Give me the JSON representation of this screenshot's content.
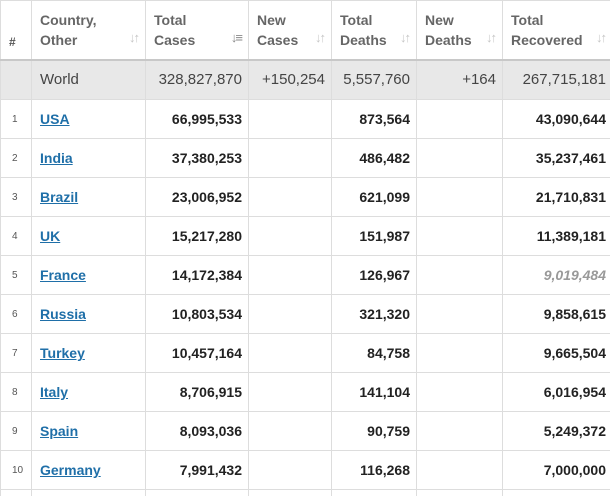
{
  "headers": {
    "rank": "#",
    "country": "Country,\nOther",
    "total_cases": "Total\nCases",
    "new_cases": "New\nCases",
    "total_deaths": "Total\nDeaths",
    "new_deaths": "New\nDeaths",
    "total_recovered": "Total\nRecovered",
    "sort_icon": "sort-arrows-icon",
    "sort_icon_glyph": "↓↑",
    "active_sort_icon_glyph": "↓≡"
  },
  "world": {
    "name": "World",
    "total_cases": "328,827,870",
    "new_cases": "+150,254",
    "total_deaths": "5,557,760",
    "new_deaths": "+164",
    "total_recovered": "267,715,181"
  },
  "rows": [
    {
      "rank": "1",
      "name": "USA",
      "total_cases": "66,995,533",
      "new_cases": "",
      "total_deaths": "873,564",
      "new_deaths": "",
      "total_recovered": "43,090,644"
    },
    {
      "rank": "2",
      "name": "India",
      "total_cases": "37,380,253",
      "new_cases": "",
      "total_deaths": "486,482",
      "new_deaths": "",
      "total_recovered": "35,237,461"
    },
    {
      "rank": "3",
      "name": "Brazil",
      "total_cases": "23,006,952",
      "new_cases": "",
      "total_deaths": "621,099",
      "new_deaths": "",
      "total_recovered": "21,710,831"
    },
    {
      "rank": "4",
      "name": "UK",
      "total_cases": "15,217,280",
      "new_cases": "",
      "total_deaths": "151,987",
      "new_deaths": "",
      "total_recovered": "11,389,181"
    },
    {
      "rank": "5",
      "name": "France",
      "total_cases": "14,172,384",
      "new_cases": "",
      "total_deaths": "126,967",
      "new_deaths": "",
      "total_recovered": "9,019,484",
      "recovered_estimated": true
    },
    {
      "rank": "6",
      "name": "Russia",
      "total_cases": "10,803,534",
      "new_cases": "",
      "total_deaths": "321,320",
      "new_deaths": "",
      "total_recovered": "9,858,615"
    },
    {
      "rank": "7",
      "name": "Turkey",
      "total_cases": "10,457,164",
      "new_cases": "",
      "total_deaths": "84,758",
      "new_deaths": "",
      "total_recovered": "9,665,504"
    },
    {
      "rank": "8",
      "name": "Italy",
      "total_cases": "8,706,915",
      "new_cases": "",
      "total_deaths": "141,104",
      "new_deaths": "",
      "total_recovered": "6,016,954"
    },
    {
      "rank": "9",
      "name": "Spain",
      "total_cases": "8,093,036",
      "new_cases": "",
      "total_deaths": "90,759",
      "new_deaths": "",
      "total_recovered": "5,249,372"
    },
    {
      "rank": "10",
      "name": "Germany",
      "total_cases": "7,991,432",
      "new_cases": "",
      "total_deaths": "116,268",
      "new_deaths": "",
      "total_recovered": "7,000,000"
    }
  ],
  "colors": {
    "link": "#1f6fa8",
    "world_row_bg": "#e8e8e8",
    "estimated_text": "#999999",
    "border": "#dddddd"
  }
}
